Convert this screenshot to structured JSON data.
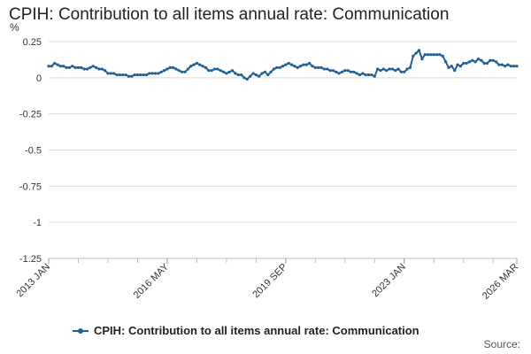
{
  "chart_data": {
    "type": "line",
    "title": "CPIH: Contribution to all items annual rate: Communication",
    "ylabel": "%",
    "xlabel": "",
    "ylim": [
      -1.25,
      0.25
    ],
    "yticks": [
      0.25,
      0,
      -0.25,
      -0.5,
      -0.75,
      -1,
      -1.25
    ],
    "ytick_labels": [
      "0.25",
      "0",
      "-0.25",
      "-0.5",
      "-0.75",
      "-1",
      "-1.25"
    ],
    "x_start": "2013 JAN",
    "x_end": "2026 MAR",
    "xtick_labels": [
      {
        "label": "2013 JAN",
        "index": 0
      },
      {
        "label": "2016 MAY",
        "index": 40
      },
      {
        "label": "2019 SEP",
        "index": 80
      },
      {
        "label": "2023 JAN",
        "index": 120
      },
      {
        "label": "2026 MAR",
        "index": 158
      }
    ],
    "grid": true,
    "legend_position": "bottom",
    "series": [
      {
        "name": "CPIH: Contribution to all items annual rate: Communication",
        "color": "#206095",
        "values": [
          0.08,
          0.08,
          0.1,
          0.09,
          0.08,
          0.08,
          0.07,
          0.07,
          0.08,
          0.07,
          0.07,
          0.07,
          0.06,
          0.06,
          0.07,
          0.08,
          0.07,
          0.06,
          0.06,
          0.05,
          0.03,
          0.03,
          0.03,
          0.02,
          0.02,
          0.02,
          0.02,
          0.01,
          0.01,
          0.02,
          0.02,
          0.02,
          0.02,
          0.02,
          0.03,
          0.03,
          0.03,
          0.03,
          0.04,
          0.05,
          0.06,
          0.07,
          0.07,
          0.06,
          0.05,
          0.04,
          0.04,
          0.06,
          0.08,
          0.09,
          0.1,
          0.09,
          0.08,
          0.07,
          0.05,
          0.05,
          0.06,
          0.06,
          0.05,
          0.04,
          0.03,
          0.04,
          0.05,
          0.03,
          0.02,
          0.02,
          0.0,
          -0.01,
          0.01,
          0.03,
          0.02,
          0.01,
          0.03,
          0.04,
          0.02,
          0.04,
          0.06,
          0.07,
          0.07,
          0.08,
          0.09,
          0.1,
          0.09,
          0.08,
          0.07,
          0.08,
          0.09,
          0.09,
          0.1,
          0.08,
          0.07,
          0.07,
          0.07,
          0.06,
          0.06,
          0.05,
          0.05,
          0.04,
          0.03,
          0.04,
          0.05,
          0.05,
          0.04,
          0.04,
          0.03,
          0.02,
          0.03,
          0.02,
          0.02,
          0.02,
          0.01,
          0.06,
          0.05,
          0.06,
          0.05,
          0.06,
          0.06,
          0.05,
          0.06,
          0.04,
          0.04,
          0.06,
          0.07,
          0.15,
          0.17,
          0.19,
          0.13,
          0.16,
          0.16,
          0.16,
          0.16,
          0.16,
          0.16,
          0.15,
          0.11,
          0.07,
          0.08,
          0.05,
          0.09,
          0.08,
          0.1,
          0.1,
          0.11,
          0.12,
          0.11,
          0.13,
          0.12,
          0.1,
          0.1,
          0.12,
          0.12,
          0.11,
          0.09,
          0.09,
          0.08,
          0.09,
          0.08,
          0.08,
          0.08
        ]
      }
    ]
  },
  "legend": {
    "label": "CPIH: Contribution to all items annual rate: Communication"
  },
  "footer": {
    "source_label": "Source:"
  }
}
